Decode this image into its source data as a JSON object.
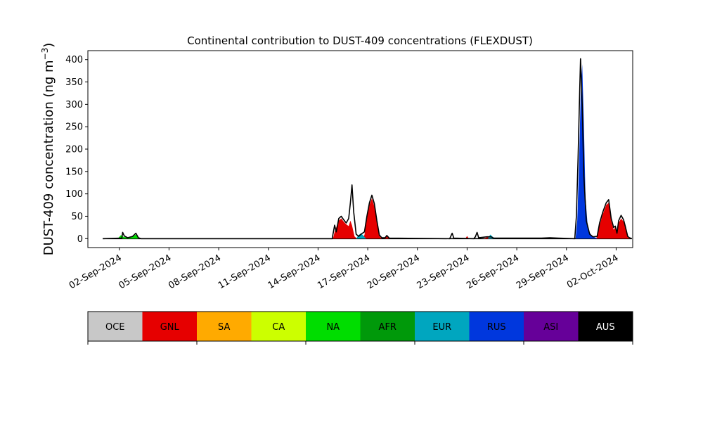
{
  "chart_data": {
    "type": "area",
    "title": "Continental contribution to DUST-409 concentrations (FLEXDUST)",
    "ylabel_main": "DUST-409 concentration (ng m",
    "ylabel_sup": "−3",
    "ylabel_close": ")",
    "ylim": [
      -20,
      420
    ],
    "yticks": [
      0,
      50,
      100,
      150,
      200,
      250,
      300,
      350,
      400
    ],
    "ytick_labels": [
      "0",
      "50",
      "100",
      "150",
      "200",
      "250",
      "300",
      "350",
      "400"
    ],
    "x_range_days": [
      -0.9,
      32.0
    ],
    "xticks": [
      {
        "day": 1,
        "label": "02-Sep-2024"
      },
      {
        "day": 4,
        "label": "05-Sep-2024"
      },
      {
        "day": 7,
        "label": "08-Sep-2024"
      },
      {
        "day": 10,
        "label": "11-Sep-2024"
      },
      {
        "day": 13,
        "label": "14-Sep-2024"
      },
      {
        "day": 16,
        "label": "17-Sep-2024"
      },
      {
        "day": 19,
        "label": "20-Sep-2024"
      },
      {
        "day": 22,
        "label": "23-Sep-2024"
      },
      {
        "day": 25,
        "label": "26-Sep-2024"
      },
      {
        "day": 28,
        "label": "29-Sep-2024"
      },
      {
        "day": 31,
        "label": "02-Oct-2024"
      }
    ],
    "day_origin_date": "01-Sep-2024",
    "series": [
      {
        "key": "GNL",
        "color": "#e60000",
        "points": [
          [
            13.9,
            0
          ],
          [
            14.0,
            15
          ],
          [
            14.1,
            25
          ],
          [
            14.25,
            40
          ],
          [
            14.4,
            45
          ],
          [
            14.55,
            38
          ],
          [
            14.7,
            32
          ],
          [
            14.85,
            28
          ],
          [
            14.95,
            40
          ],
          [
            15.05,
            30
          ],
          [
            15.2,
            5
          ],
          [
            15.35,
            0
          ],
          [
            15.6,
            0
          ],
          [
            15.8,
            8
          ],
          [
            15.95,
            45
          ],
          [
            16.1,
            75
          ],
          [
            16.25,
            90
          ],
          [
            16.4,
            72
          ],
          [
            16.55,
            35
          ],
          [
            16.7,
            6
          ],
          [
            16.85,
            0
          ],
          [
            17.0,
            0
          ],
          [
            17.15,
            5
          ],
          [
            17.3,
            0
          ],
          [
            21.9,
            0
          ],
          [
            22.0,
            6
          ],
          [
            22.1,
            0
          ],
          [
            23.0,
            0
          ],
          [
            23.2,
            3
          ],
          [
            23.45,
            3
          ],
          [
            23.6,
            0
          ],
          [
            28.0,
            0
          ],
          [
            29.8,
            0
          ],
          [
            30.0,
            30
          ],
          [
            30.2,
            55
          ],
          [
            30.4,
            75
          ],
          [
            30.55,
            80
          ],
          [
            30.7,
            40
          ],
          [
            30.85,
            20
          ],
          [
            30.95,
            25
          ],
          [
            31.05,
            10
          ],
          [
            31.15,
            35
          ],
          [
            31.3,
            45
          ],
          [
            31.45,
            38
          ],
          [
            31.55,
            25
          ],
          [
            31.7,
            3
          ],
          [
            31.85,
            0
          ]
        ]
      },
      {
        "key": "NA",
        "color": "#00dd00",
        "points": [
          [
            0.9,
            0
          ],
          [
            1.1,
            8
          ],
          [
            1.25,
            4
          ],
          [
            1.5,
            2
          ],
          [
            1.8,
            5
          ],
          [
            2.0,
            9
          ],
          [
            2.2,
            0
          ]
        ]
      },
      {
        "key": "EUR",
        "color": "#00a6bf",
        "points": [
          [
            15.3,
            0
          ],
          [
            15.45,
            8
          ],
          [
            15.6,
            12
          ],
          [
            15.75,
            6
          ],
          [
            15.9,
            0
          ],
          [
            23.25,
            0
          ],
          [
            23.4,
            9
          ],
          [
            23.55,
            4
          ],
          [
            23.7,
            0
          ]
        ]
      },
      {
        "key": "RUS",
        "color": "#0037dd",
        "points": [
          [
            28.55,
            0
          ],
          [
            28.65,
            40
          ],
          [
            28.75,
            150
          ],
          [
            28.85,
            310
          ],
          [
            28.95,
            390
          ],
          [
            29.05,
            260
          ],
          [
            29.15,
            90
          ],
          [
            29.3,
            20
          ],
          [
            29.5,
            8
          ],
          [
            29.7,
            3
          ],
          [
            29.9,
            0
          ]
        ]
      },
      {
        "key": "AUS",
        "color": "#000000",
        "points": [
          [
            0,
            0
          ],
          [
            1.15,
            1
          ],
          [
            1.2,
            14
          ],
          [
            1.3,
            6
          ],
          [
            1.5,
            2
          ],
          [
            1.8,
            5
          ],
          [
            2.0,
            12
          ],
          [
            2.15,
            2
          ],
          [
            2.3,
            0
          ],
          [
            13.85,
            0
          ],
          [
            14.0,
            30
          ],
          [
            14.1,
            15
          ],
          [
            14.25,
            45
          ],
          [
            14.4,
            50
          ],
          [
            14.55,
            42
          ],
          [
            14.7,
            35
          ],
          [
            14.85,
            45
          ],
          [
            14.95,
            80
          ],
          [
            15.05,
            120
          ],
          [
            15.15,
            60
          ],
          [
            15.3,
            10
          ],
          [
            15.45,
            5
          ],
          [
            15.6,
            10
          ],
          [
            15.8,
            15
          ],
          [
            15.95,
            50
          ],
          [
            16.1,
            80
          ],
          [
            16.25,
            97
          ],
          [
            16.4,
            78
          ],
          [
            16.55,
            40
          ],
          [
            16.7,
            8
          ],
          [
            16.85,
            2
          ],
          [
            17.05,
            2
          ],
          [
            17.15,
            7
          ],
          [
            17.3,
            1
          ],
          [
            20.95,
            0
          ],
          [
            21.0,
            4
          ],
          [
            21.1,
            12
          ],
          [
            21.2,
            1
          ],
          [
            22.4,
            0
          ],
          [
            22.5,
            4
          ],
          [
            22.6,
            14
          ],
          [
            22.7,
            2
          ],
          [
            23.2,
            4
          ],
          [
            23.45,
            4
          ],
          [
            23.6,
            1
          ],
          [
            25.1,
            1
          ],
          [
            26.5,
            1
          ],
          [
            27.0,
            2
          ],
          [
            27.5,
            1
          ],
          [
            28.5,
            0
          ],
          [
            28.6,
            50
          ],
          [
            28.7,
            180
          ],
          [
            28.8,
            330
          ],
          [
            28.85,
            402
          ],
          [
            28.95,
            300
          ],
          [
            29.05,
            140
          ],
          [
            29.2,
            40
          ],
          [
            29.4,
            10
          ],
          [
            29.6,
            4
          ],
          [
            29.85,
            5
          ],
          [
            30.0,
            35
          ],
          [
            30.2,
            60
          ],
          [
            30.4,
            80
          ],
          [
            30.55,
            87
          ],
          [
            30.7,
            45
          ],
          [
            30.85,
            25
          ],
          [
            30.95,
            28
          ],
          [
            31.05,
            12
          ],
          [
            31.15,
            40
          ],
          [
            31.3,
            52
          ],
          [
            31.45,
            42
          ],
          [
            31.55,
            28
          ],
          [
            31.7,
            5
          ],
          [
            31.8,
            2
          ],
          [
            31.95,
            0
          ]
        ]
      }
    ],
    "legend": [
      {
        "label": "OCE",
        "color": "#c8c8c8",
        "text_color": "#000000"
      },
      {
        "label": "GNL",
        "color": "#e60000",
        "text_color": "#000000"
      },
      {
        "label": "SA",
        "color": "#ffaa00",
        "text_color": "#000000"
      },
      {
        "label": "CA",
        "color": "#ccff00",
        "text_color": "#000000"
      },
      {
        "label": "NA",
        "color": "#00dd00",
        "text_color": "#000000"
      },
      {
        "label": "AFR",
        "color": "#00990a",
        "text_color": "#000000"
      },
      {
        "label": "EUR",
        "color": "#00a6bf",
        "text_color": "#000000"
      },
      {
        "label": "RUS",
        "color": "#0037dd",
        "text_color": "#000000"
      },
      {
        "label": "ASI",
        "color": "#660099",
        "text_color": "#000000"
      },
      {
        "label": "AUS",
        "color": "#000000",
        "text_color": "#ffffff"
      }
    ]
  }
}
